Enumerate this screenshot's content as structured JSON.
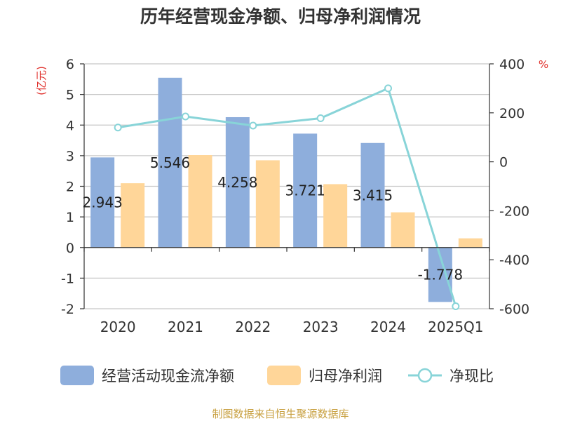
{
  "chart_data": {
    "type": "bar",
    "title": "历年经营现金净额、归母净利润情况",
    "categories": [
      "2020",
      "2021",
      "2022",
      "2023",
      "2024",
      "2025Q1"
    ],
    "series": [
      {
        "name": "经营活动现金流净额",
        "type": "bar",
        "axis": "left",
        "color": "#8eaedc",
        "values": [
          2.943,
          5.546,
          4.258,
          3.721,
          3.415,
          -1.778
        ],
        "labels": [
          "2.943",
          "5.546",
          "4.258",
          "3.721",
          "3.415",
          "-1.778"
        ]
      },
      {
        "name": "归母净利润",
        "type": "bar",
        "axis": "left",
        "color": "#ffd699",
        "values": [
          2.1,
          3.02,
          2.85,
          2.07,
          1.15,
          0.3
        ]
      },
      {
        "name": "净现比",
        "type": "line",
        "axis": "right",
        "color": "#88d4d8",
        "values": [
          140,
          185,
          148,
          178,
          300,
          -590
        ]
      }
    ],
    "left_axis": {
      "label": "(亿元)",
      "ylim": [
        -2,
        6
      ],
      "ticks": [
        "6",
        "5",
        "4",
        "3",
        "2",
        "1",
        "0",
        "-1",
        "-2"
      ]
    },
    "right_axis": {
      "label": "%",
      "ylim": [
        -600,
        400
      ],
      "ticks": [
        "400",
        "200",
        "0",
        "-200",
        "-400",
        "-600"
      ]
    },
    "grid": true,
    "legend_position": "bottom"
  },
  "source_text": "制图数据来自恒生聚源数据库"
}
